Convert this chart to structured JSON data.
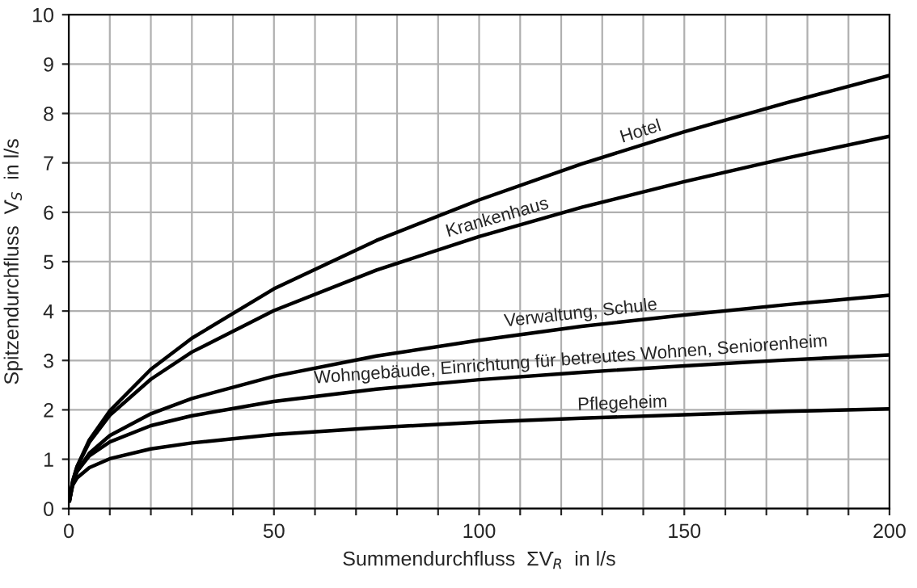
{
  "chart_data": {
    "type": "line",
    "xlabel": "Summendurchfluss  ΣV̇$_{R}$  in l/s",
    "ylabel": "Spitzendurchfluss  V̇$_{S}$  in l/s",
    "x": [
      0.2,
      1,
      2,
      5,
      10,
      20,
      30,
      50,
      75,
      100,
      125,
      150,
      175,
      200
    ],
    "series": [
      {
        "name": "Hotel",
        "color": "#000000",
        "values": [
          0.19,
          0.57,
          0.85,
          1.39,
          1.98,
          2.82,
          3.45,
          4.45,
          5.43,
          6.25,
          6.98,
          7.63,
          8.22,
          8.77
        ]
      },
      {
        "name": "Krankenhaus",
        "color": "#000000",
        "values": [
          0.19,
          0.57,
          0.84,
          1.34,
          1.89,
          2.62,
          3.17,
          4.01,
          4.83,
          5.51,
          6.1,
          6.62,
          7.1,
          7.54
        ]
      },
      {
        "name": "Verwaltung, Schule",
        "color": "#000000",
        "values": [
          0.17,
          0.53,
          0.75,
          1.12,
          1.48,
          1.92,
          2.23,
          2.68,
          3.09,
          3.41,
          3.69,
          3.92,
          4.13,
          4.32
        ]
      },
      {
        "name": "Wohngebäude, Einrichtung für betreutes Wohnen, Seniorenheim",
        "color": "#000000",
        "values": [
          0.15,
          0.54,
          0.75,
          1.07,
          1.35,
          1.68,
          1.88,
          2.17,
          2.42,
          2.61,
          2.76,
          2.89,
          3.01,
          3.11
        ]
      },
      {
        "name": "Pflegeheim",
        "color": "#000000",
        "values": [
          0.2,
          0.48,
          0.62,
          0.83,
          1.01,
          1.21,
          1.33,
          1.5,
          1.64,
          1.75,
          1.83,
          1.9,
          1.97,
          2.02
        ]
      }
    ],
    "xlim": [
      0,
      200
    ],
    "xticks": [
      0,
      {
        "value": 10,
        "label": null
      },
      {
        "value": 20,
        "label": null
      },
      {
        "value": 30,
        "label": null
      },
      {
        "value": 40,
        "label": null
      },
      50,
      {
        "value": 60,
        "label": null
      },
      {
        "value": 70,
        "label": null
      },
      {
        "value": 80,
        "label": null
      },
      {
        "value": 90,
        "label": null
      },
      100,
      {
        "value": 110,
        "label": null
      },
      {
        "value": 120,
        "label": null
      },
      {
        "value": 130,
        "label": null
      },
      {
        "value": 140,
        "label": null
      },
      150,
      {
        "value": 160,
        "label": null
      },
      {
        "value": 170,
        "label": null
      },
      {
        "value": 180,
        "label": null
      },
      {
        "value": 190,
        "label": null
      },
      200
    ],
    "ylim": [
      0,
      10
    ],
    "yticks": [
      0,
      1,
      2,
      3,
      4,
      5,
      6,
      7,
      8,
      9,
      10
    ],
    "grid": true,
    "marker": "none",
    "line_style": "solid",
    "legend": false
  }
}
